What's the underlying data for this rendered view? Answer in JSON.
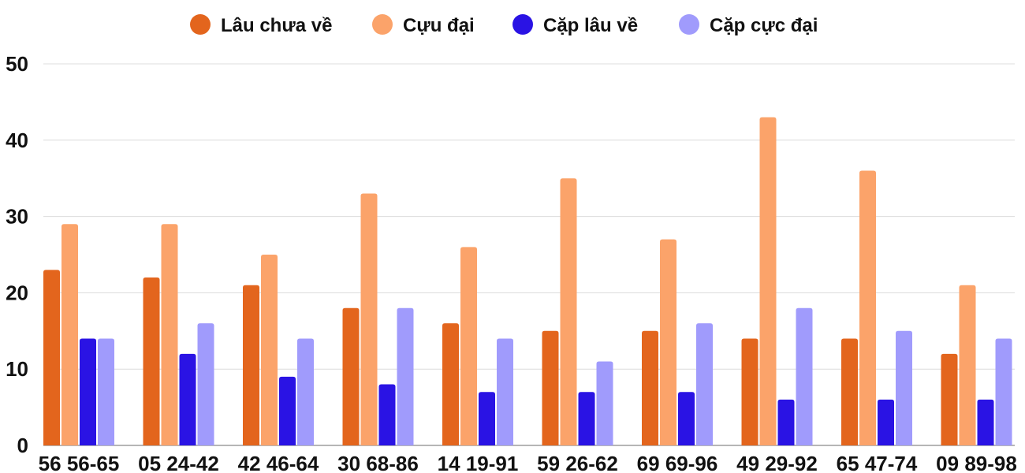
{
  "chart_data": {
    "type": "bar",
    "title": "",
    "xlabel": "",
    "ylabel": "",
    "ylim": [
      0,
      50
    ],
    "yticks": [
      0,
      10,
      20,
      30,
      40,
      50
    ],
    "grid": true,
    "legend_position": "top-center",
    "categories": [
      "56 56-65",
      "05 24-42",
      "42 46-64",
      "30 68-86",
      "14 19-91",
      "59 26-62",
      "69 69-96",
      "49 29-92",
      "65 47-74",
      "09 89-98"
    ],
    "series": [
      {
        "name": "Lâu chưa về",
        "color": "#e3651d",
        "values": [
          23,
          22,
          21,
          18,
          16,
          15,
          15,
          14,
          14,
          12
        ]
      },
      {
        "name": "Cựu đại",
        "color": "#fba36a",
        "values": [
          29,
          29,
          25,
          33,
          26,
          35,
          27,
          43,
          36,
          21
        ]
      },
      {
        "name": "Cặp lâu về",
        "color": "#2a13e4",
        "values": [
          14,
          12,
          9,
          8,
          7,
          7,
          7,
          6,
          6,
          6
        ]
      },
      {
        "name": "Cặp cực đại",
        "color": "#a09bfc",
        "values": [
          14,
          16,
          14,
          18,
          14,
          11,
          16,
          18,
          15,
          14
        ]
      }
    ]
  }
}
